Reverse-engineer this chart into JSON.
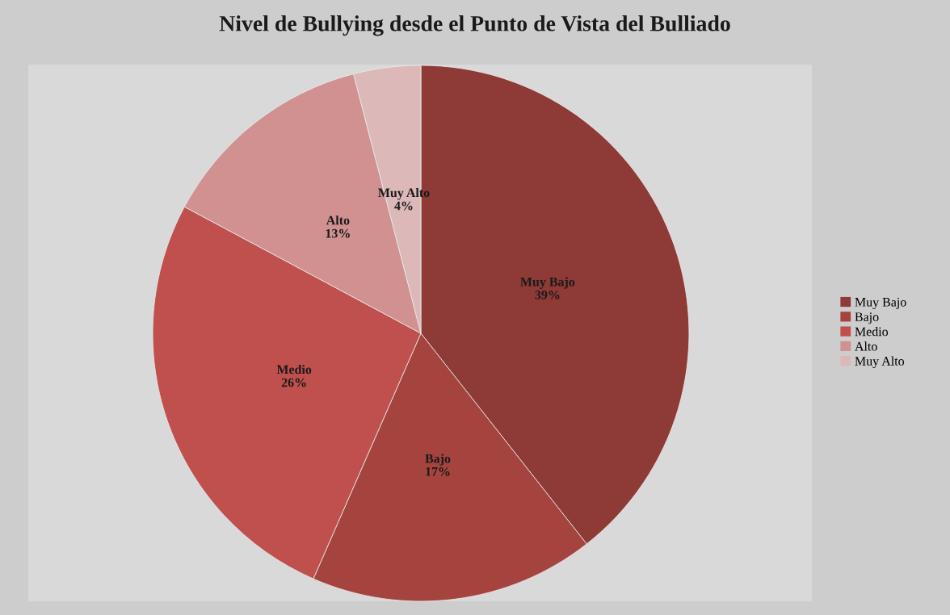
{
  "chart_data": {
    "type": "pie",
    "title": "Nivel de Bullying desde el Punto de Vista del Bulliado",
    "categories": [
      "Muy Bajo",
      "Bajo",
      "Medio",
      "Alto",
      "Muy Alto"
    ],
    "values": [
      39,
      17,
      26,
      13,
      4
    ],
    "value_labels": [
      "39%",
      "17%",
      "26%",
      "13%",
      "4%"
    ],
    "colors": [
      "#8e3a36",
      "#a5443f",
      "#bf504d",
      "#d09190",
      "#ddb8b8"
    ],
    "legend": "right"
  }
}
